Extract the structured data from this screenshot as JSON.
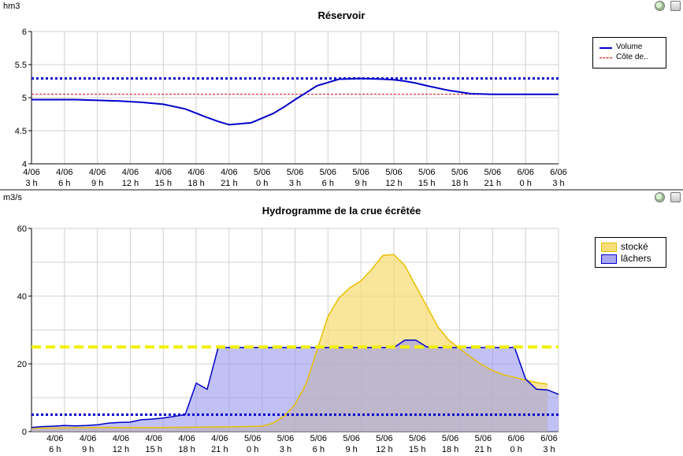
{
  "toolbar": {
    "icons": [
      "zoom-icon",
      "save-icon"
    ]
  },
  "colors": {
    "volume": "#0000cc",
    "cote": "#cc0000",
    "stocke_line": "#e8c000",
    "stocke_fill": "#f8de78",
    "laches_line": "#0000cc",
    "laches_fill": "#a8a8f0",
    "threshold_yellow": "#f0f000",
    "threshold_blue": "#0000cc",
    "grid": "#d0d0d0"
  },
  "chart_data": [
    {
      "type": "line",
      "title": "Réservoir",
      "unit": "hm3",
      "x_ticks": [
        [
          "4/06",
          "3 h"
        ],
        [
          "4/06",
          "6 h"
        ],
        [
          "4/06",
          "9 h"
        ],
        [
          "4/06",
          "12 h"
        ],
        [
          "4/06",
          "15 h"
        ],
        [
          "4/06",
          "18 h"
        ],
        [
          "4/06",
          "21 h"
        ],
        [
          "5/06",
          "0 h"
        ],
        [
          "5/06",
          "3 h"
        ],
        [
          "5/06",
          "6 h"
        ],
        [
          "5/06",
          "9 h"
        ],
        [
          "5/06",
          "12 h"
        ],
        [
          "5/06",
          "15 h"
        ],
        [
          "5/06",
          "18 h"
        ],
        [
          "5/06",
          "21 h"
        ],
        [
          "6/06",
          "0 h"
        ],
        [
          "6/06",
          "3 h"
        ]
      ],
      "xlim": [
        0,
        48
      ],
      "ylim": [
        4,
        6
      ],
      "y_ticks": [
        "4",
        "4.5",
        "5",
        "5.5",
        "6"
      ],
      "legend": [
        "Volume",
        "Côte de.."
      ],
      "series": [
        {
          "name": "Volume",
          "x": [
            0,
            2,
            4,
            6,
            8,
            10,
            12,
            14,
            16,
            17,
            18,
            20,
            22,
            23,
            24,
            26,
            28,
            30,
            32,
            33,
            34,
            35,
            36,
            38,
            40,
            42,
            44,
            45,
            46,
            47,
            48
          ],
          "y": [
            4.97,
            4.97,
            4.97,
            4.96,
            4.95,
            4.93,
            4.9,
            4.83,
            4.7,
            4.64,
            4.59,
            4.62,
            4.76,
            4.86,
            4.97,
            5.18,
            5.28,
            5.29,
            5.28,
            5.27,
            5.25,
            5.22,
            5.18,
            5.11,
            5.06,
            5.05,
            5.05,
            5.05,
            5.05,
            5.05,
            5.05
          ]
        }
      ],
      "cote_level": 5.05,
      "threshold_level": 5.29
    },
    {
      "type": "area",
      "title": "Hydrogramme de la crue écrêtée",
      "unit": "m3/s",
      "x_ticks": [
        [
          "4/06",
          "6 h"
        ],
        [
          "4/06",
          "9 h"
        ],
        [
          "4/06",
          "12 h"
        ],
        [
          "4/06",
          "15 h"
        ],
        [
          "4/06",
          "18 h"
        ],
        [
          "4/06",
          "21 h"
        ],
        [
          "5/06",
          "0 h"
        ],
        [
          "5/06",
          "3 h"
        ],
        [
          "5/06",
          "6 h"
        ],
        [
          "5/06",
          "9 h"
        ],
        [
          "5/06",
          "12 h"
        ],
        [
          "5/06",
          "15 h"
        ],
        [
          "5/06",
          "18 h"
        ],
        [
          "5/06",
          "21 h"
        ],
        [
          "6/06",
          "0 h"
        ],
        [
          "6/06",
          "3 h"
        ]
      ],
      "xlim": [
        0,
        48
      ],
      "ylim": [
        0,
        60
      ],
      "y_ticks": [
        "0",
        "20",
        "40",
        "60"
      ],
      "legend": [
        "stocké",
        "lâchers"
      ],
      "series": [
        {
          "name": "stocké",
          "x": [
            0,
            3,
            6,
            9,
            12,
            15,
            18,
            21,
            22,
            23,
            24,
            25,
            26,
            27,
            28,
            29,
            30,
            31,
            32,
            33,
            34,
            35,
            36,
            37,
            38,
            39,
            40,
            41,
            42,
            43,
            44,
            45,
            46,
            47
          ],
          "y": [
            1.0,
            1.1,
            1.2,
            1.2,
            1.2,
            1.3,
            1.4,
            1.6,
            2.5,
            4.5,
            8.0,
            14.0,
            24.0,
            34.0,
            39.5,
            42.5,
            44.5,
            48.0,
            52.0,
            52.3,
            49.0,
            43.0,
            37.0,
            31.0,
            27.0,
            24.5,
            22.0,
            19.8,
            18.0,
            16.8,
            16.0,
            15.2,
            14.5,
            14.0
          ]
        },
        {
          "name": "lâchers",
          "x": [
            0,
            1,
            2,
            3,
            4,
            5,
            6,
            7,
            8,
            9,
            10,
            11,
            12,
            13,
            14,
            15,
            16,
            17,
            18,
            19,
            20,
            21,
            22,
            23,
            24,
            25,
            26,
            27,
            28,
            29,
            30,
            31,
            32,
            33,
            34,
            35,
            36,
            37,
            38,
            39,
            40,
            41,
            42,
            43,
            44,
            45,
            46,
            47,
            48
          ],
          "y": [
            1.2,
            1.5,
            1.6,
            1.8,
            1.7,
            1.8,
            2.0,
            2.5,
            2.7,
            2.8,
            3.5,
            3.7,
            4.0,
            4.5,
            5.0,
            14.3,
            12.5,
            24.8,
            24.8,
            24.8,
            24.8,
            24.8,
            24.8,
            24.8,
            24.8,
            24.8,
            24.8,
            24.8,
            24.8,
            24.8,
            24.8,
            24.8,
            24.8,
            24.8,
            27.0,
            27.0,
            25.0,
            24.8,
            24.8,
            24.8,
            24.8,
            24.8,
            24.8,
            24.8,
            24.8,
            15.5,
            12.5,
            12.3,
            11.0
          ]
        }
      ],
      "threshold_yellow": 25,
      "threshold_blue": 5
    }
  ]
}
